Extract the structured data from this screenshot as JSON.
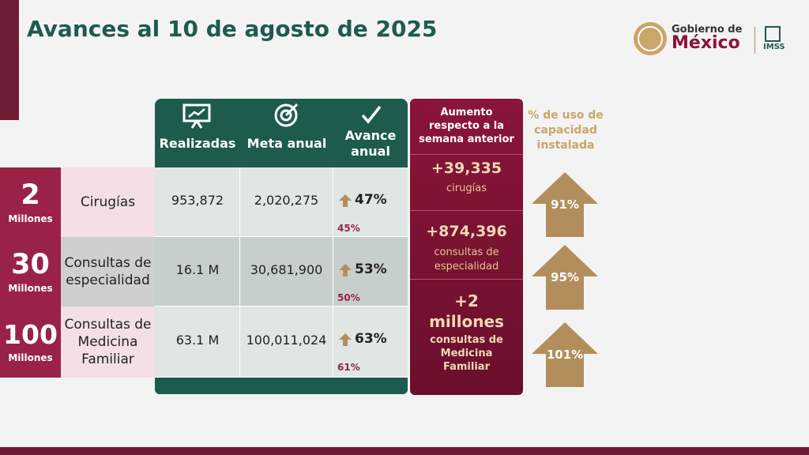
{
  "header": {
    "title": "Avances al 10 de agosto de 2025",
    "logo_line1": "Gobierno de",
    "logo_line2": "México",
    "logo_imss": "IMSS"
  },
  "table": {
    "columns": [
      "Realizadas",
      "Meta anual",
      "Avance anual"
    ],
    "rows": [
      {
        "goal": "2",
        "goal_unit": "Millones",
        "label": "Cirugías",
        "realizadas": "953,872",
        "meta": "2,020,275",
        "avance": "47%",
        "previous": "45%"
      },
      {
        "goal": "30",
        "goal_unit": "Millones",
        "label": "Consultas de especialidad",
        "realizadas": "16.1 M",
        "meta": "30,681,900",
        "avance": "53%",
        "previous": "50%"
      },
      {
        "goal": "100",
        "goal_unit": "Millones",
        "label": "Consultas de Medicina Familiar",
        "realizadas": "63.1 M",
        "meta": "100,011,024",
        "avance": "63%",
        "previous": "61%"
      }
    ]
  },
  "weekly": {
    "title": "Aumento respecto a la semana anterior",
    "items": [
      {
        "value": "+39,335",
        "label": "cirugías"
      },
      {
        "value": "+874,396",
        "label": "consultas de especialidad"
      },
      {
        "value": "+2 millones",
        "label": "consultas de Medicina Familiar"
      }
    ]
  },
  "capacity": {
    "title": "% de uso de capacidad instalada",
    "values": [
      "91%",
      "95%",
      "101%"
    ]
  }
}
